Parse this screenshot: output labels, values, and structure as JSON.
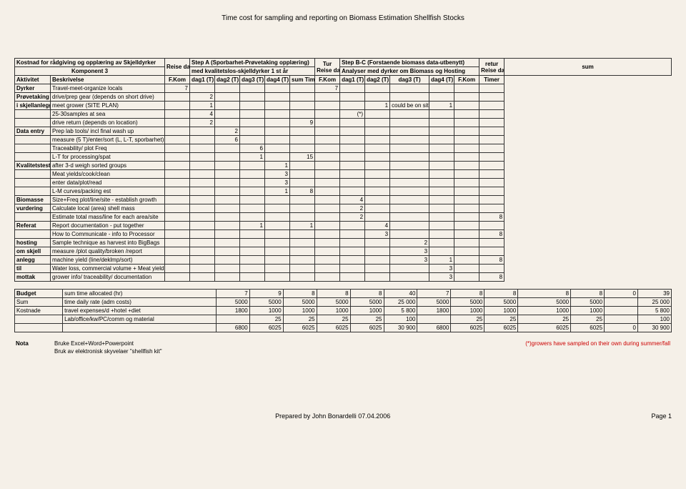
{
  "page_title": "Time cost for sampling and reporting on Biomass Estimation Shellfish Stocks",
  "header": {
    "kostnad": "Kostnad for rådgiving og opplæring av Skjelldyrker",
    "komponent": "Komponent 3",
    "aktivitet": "Aktivitet",
    "beskrivelse": "Beskrivelse",
    "reise_dagen": "Reise dagen",
    "fkom": "F.Kom",
    "stepA": "Step A (Sporbarhet-Prøvetaking opplæring)",
    "stepA_sub": "med kvalitetslos-skjelldyrker 1 st år",
    "dag1": "dag1 (T)",
    "dag2": "dag2 (T)",
    "dag3": "dag3 (T)",
    "dag4": "dag4 (T)",
    "sum_timer": "sum Timer",
    "tur": "Tur",
    "stepB": "Step B-C (Forstaende biomass data-utbenytt)",
    "stepB_sub": "Analyser med dyrker om Biomass og Hosting",
    "retur": "retur",
    "sum": "sum",
    "timer": "Timer"
  },
  "rows": [
    {
      "act": "Dyrker",
      "desc": "Travel-meet-organize locals",
      "r": "7",
      "d1": "",
      "d2": "",
      "d3": "",
      "d4": "",
      "st": "",
      "t": "7",
      "b1": "",
      "b2": "",
      "b3": "",
      "b4": "",
      "rt": "",
      "s": ""
    },
    {
      "act": "Prøvetaking",
      "desc": "drive/prep gear (depends on short drive)",
      "r": "",
      "d1": "2",
      "d2": "",
      "d3": "",
      "d4": "",
      "st": "",
      "t": "",
      "b1": "",
      "b2": "",
      "b3": "",
      "b4": "",
      "rt": "",
      "s": ""
    },
    {
      "act": "i skjellanlegg",
      "desc": "meet grower (SITE PLAN)",
      "r": "",
      "d1": "1",
      "d2": "",
      "d3": "",
      "d4": "",
      "st": "",
      "t": "",
      "b1": "",
      "b2": "1",
      "b3": "could be on site",
      "b4": "1",
      "rt": "",
      "s": ""
    },
    {
      "act": "",
      "desc": "25-30samples at sea",
      "r": "",
      "d1": "4",
      "d2": "",
      "d3": "",
      "d4": "",
      "st": "",
      "t": "",
      "b1": "(*)",
      "b2": "",
      "b3": "",
      "b4": "",
      "rt": "",
      "s": ""
    },
    {
      "act": "",
      "desc": "drive return (depends on location)",
      "r": "",
      "d1": "2",
      "d2": "",
      "d3": "",
      "d4": "",
      "st": "9",
      "t": "",
      "b1": "",
      "b2": "",
      "b3": "",
      "b4": "",
      "rt": "",
      "s": ""
    },
    {
      "act": "Data entry",
      "desc": "Prep lab tools/ incl final wash up",
      "r": "",
      "d1": "",
      "d2": "2",
      "d3": "",
      "d4": "",
      "st": "",
      "t": "",
      "b1": "",
      "b2": "",
      "b3": "",
      "b4": "",
      "rt": "",
      "s": ""
    },
    {
      "act": "",
      "desc": "measure (5 T)/enter/sort (L, L-T, sporbarhet)",
      "r": "",
      "d1": "",
      "d2": "6",
      "d3": "",
      "d4": "",
      "st": "",
      "t": "",
      "b1": "",
      "b2": "",
      "b3": "",
      "b4": "",
      "rt": "",
      "s": ""
    },
    {
      "act": "",
      "desc": "Traceability/ plot Freq",
      "r": "",
      "d1": "",
      "d2": "",
      "d3": "6",
      "d4": "",
      "st": "",
      "t": "",
      "b1": "",
      "b2": "",
      "b3": "",
      "b4": "",
      "rt": "",
      "s": ""
    },
    {
      "act": "",
      "desc": "L-T for processing/spat",
      "r": "",
      "d1": "",
      "d2": "",
      "d3": "1",
      "d4": "",
      "st": "15",
      "t": "",
      "b1": "",
      "b2": "",
      "b3": "",
      "b4": "",
      "rt": "",
      "s": ""
    },
    {
      "act": "Kvalitetstest",
      "desc": "after 3-d weigh sorted groups",
      "r": "",
      "d1": "",
      "d2": "",
      "d3": "",
      "d4": "1",
      "st": "",
      "t": "",
      "b1": "",
      "b2": "",
      "b3": "",
      "b4": "",
      "rt": "",
      "s": ""
    },
    {
      "act": "",
      "desc": "Meat yields/cook/clean",
      "r": "",
      "d1": "",
      "d2": "",
      "d3": "",
      "d4": "3",
      "st": "",
      "t": "",
      "b1": "",
      "b2": "",
      "b3": "",
      "b4": "",
      "rt": "",
      "s": ""
    },
    {
      "act": "",
      "desc": "enter data/plot/read",
      "r": "",
      "d1": "",
      "d2": "",
      "d3": "",
      "d4": "3",
      "st": "",
      "t": "",
      "b1": "",
      "b2": "",
      "b3": "",
      "b4": "",
      "rt": "",
      "s": ""
    },
    {
      "act": "",
      "desc": "L-M curves/packing est",
      "r": "",
      "d1": "",
      "d2": "",
      "d3": "",
      "d4": "1",
      "st": "8",
      "t": "",
      "b1": "",
      "b2": "",
      "b3": "",
      "b4": "",
      "rt": "",
      "s": ""
    },
    {
      "act": "Biomasse",
      "desc": "Size+Freq plot/line/site - establish growth",
      "r": "",
      "d1": "",
      "d2": "",
      "d3": "",
      "d4": "",
      "st": "",
      "t": "",
      "b1": "4",
      "b2": "",
      "b3": "",
      "b4": "",
      "rt": "",
      "s": ""
    },
    {
      "act": "vurdering",
      "desc": "Calculate local (area) shell mass",
      "r": "",
      "d1": "",
      "d2": "",
      "d3": "",
      "d4": "",
      "st": "",
      "t": "",
      "b1": "2",
      "b2": "",
      "b3": "",
      "b4": "",
      "rt": "",
      "s": ""
    },
    {
      "act": "",
      "desc": "Estimate total mass/line for each area/site",
      "r": "",
      "d1": "",
      "d2": "",
      "d3": "",
      "d4": "",
      "st": "",
      "t": "",
      "b1": "2",
      "b2": "",
      "b3": "",
      "b4": "",
      "rt": "",
      "s": "8"
    },
    {
      "act": "Referat",
      "desc": "Report documentation - put together",
      "r": "",
      "d1": "",
      "d2": "",
      "d3": "1",
      "d4": "",
      "st": "1",
      "t": "",
      "b1": "",
      "b2": "4",
      "b3": "",
      "b4": "",
      "rt": "",
      "s": ""
    },
    {
      "act": "",
      "desc": "How to Communicate - info to Processor",
      "r": "",
      "d1": "",
      "d2": "",
      "d3": "",
      "d4": "",
      "st": "",
      "t": "",
      "b1": "",
      "b2": "3",
      "b3": "",
      "b4": "",
      "rt": "",
      "s": "8"
    },
    {
      "act": "hosting",
      "desc": "Sample technique as harvest into BigBags",
      "r": "",
      "d1": "",
      "d2": "",
      "d3": "",
      "d4": "",
      "st": "",
      "t": "",
      "b1": "",
      "b2": "",
      "b3": "2",
      "b4": "",
      "rt": "",
      "s": ""
    },
    {
      "act": "om skjell",
      "desc": "measure /plot quality/broken /report",
      "r": "",
      "d1": "",
      "d2": "",
      "d3": "",
      "d4": "",
      "st": "",
      "t": "",
      "b1": "",
      "b2": "",
      "b3": "3",
      "b4": "",
      "rt": "",
      "s": ""
    },
    {
      "act": "anlegg",
      "desc": "machine yield (line/deklmp/sort)",
      "r": "",
      "d1": "",
      "d2": "",
      "d3": "",
      "d4": "",
      "st": "",
      "t": "",
      "b1": "",
      "b2": "",
      "b3": "3",
      "b4": "1",
      "rt": "",
      "s": "8"
    },
    {
      "act": "til",
      "desc": "Water loss, commercial volume + Meat yield",
      "r": "",
      "d1": "",
      "d2": "",
      "d3": "",
      "d4": "",
      "st": "",
      "t": "",
      "b1": "",
      "b2": "",
      "b3": "",
      "b4": "3",
      "rt": "",
      "s": ""
    },
    {
      "act": "mottak",
      "desc": "grower info/ traceability/ documentation",
      "r": "",
      "d1": "",
      "d2": "",
      "d3": "",
      "d4": "",
      "st": "",
      "t": "",
      "b1": "",
      "b2": "",
      "b3": "",
      "b4": "3",
      "rt": "",
      "s": "8"
    }
  ],
  "budget": {
    "label": "Budget",
    "sum_time": "sum time allocated (hr)",
    "sum_vals": [
      "7",
      "9",
      "8",
      "8",
      "8",
      "40",
      "7",
      "8",
      "8",
      "8",
      "8",
      "0",
      "39"
    ],
    "sum_label": "Sum",
    "daily": "time daily rate (adm costs)",
    "daily_vals": [
      "5000",
      "5000",
      "5000",
      "5000",
      "5000",
      "25 000",
      "5000",
      "5000",
      "5000",
      "5000",
      "5000",
      "",
      "25 000"
    ],
    "kostnade": "Kostnade",
    "travel": "travel expenses/d +hotel +diet",
    "travel_vals": [
      "1800",
      "1000",
      "1000",
      "1000",
      "1000",
      "5 800",
      "1800",
      "1000",
      "1000",
      "1000",
      "1000",
      "",
      "5 800"
    ],
    "lab": "Lab/office/kw/PC/comm og material",
    "lab_vals": [
      "",
      "25",
      "25",
      "25",
      "25",
      "100",
      "",
      "25",
      "25",
      "25",
      "25",
      "",
      "100"
    ],
    "total_vals": [
      "6800",
      "6025",
      "6025",
      "6025",
      "6025",
      "30 900",
      "6800",
      "6025",
      "6025",
      "6025",
      "6025",
      "0",
      "30 900"
    ]
  },
  "nota": {
    "label": "Nota",
    "l1": "Bruke Excel+Word+Powerpoint",
    "l2": "Bruk av elektronisk skyvelaer \"shellfish kit\"",
    "red": "(*)growers have sampled on their own during summer/fall"
  },
  "footer": {
    "prepared": "Prepared by John Bonardelli 07.04.2006",
    "page": "Page 1"
  }
}
